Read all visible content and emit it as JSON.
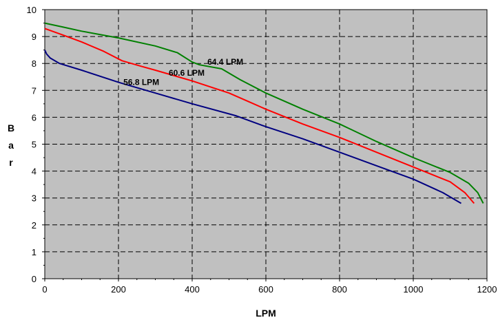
{
  "chart_data": {
    "type": "line",
    "title": "",
    "xlabel": "LPM",
    "ylabel": "Bar",
    "xlim": [
      0,
      1200
    ],
    "ylim": [
      0,
      10
    ],
    "xticks": [
      "0",
      "200",
      "400",
      "600",
      "800",
      "1000",
      "1200"
    ],
    "yticks": [
      "0",
      "1",
      "2",
      "3",
      "4",
      "5",
      "6",
      "7",
      "8",
      "9",
      "10"
    ],
    "grid": true,
    "background": "#c0c0c0",
    "series": [
      {
        "name": "56.8 LPM",
        "color": "#000080",
        "points": [
          [
            0,
            8.5
          ],
          [
            5,
            8.35
          ],
          [
            15,
            8.2
          ],
          [
            40,
            8.0
          ],
          [
            100,
            7.75
          ],
          [
            200,
            7.3
          ],
          [
            300,
            6.9
          ],
          [
            400,
            6.5
          ],
          [
            520,
            6.05
          ],
          [
            600,
            5.65
          ],
          [
            700,
            5.2
          ],
          [
            800,
            4.7
          ],
          [
            900,
            4.2
          ],
          [
            1000,
            3.7
          ],
          [
            1080,
            3.2
          ],
          [
            1130,
            2.8
          ]
        ]
      },
      {
        "name": "60.6 LPM",
        "color": "#ff0000",
        "points": [
          [
            0,
            9.3
          ],
          [
            50,
            9.05
          ],
          [
            100,
            8.8
          ],
          [
            160,
            8.45
          ],
          [
            210,
            8.1
          ],
          [
            260,
            7.9
          ],
          [
            300,
            7.75
          ],
          [
            400,
            7.35
          ],
          [
            500,
            6.9
          ],
          [
            550,
            6.6
          ],
          [
            600,
            6.3
          ],
          [
            700,
            5.75
          ],
          [
            800,
            5.25
          ],
          [
            900,
            4.7
          ],
          [
            1000,
            4.15
          ],
          [
            1100,
            3.6
          ],
          [
            1140,
            3.2
          ],
          [
            1165,
            2.8
          ]
        ]
      },
      {
        "name": "64.4 LPM",
        "color": "#008000",
        "points": [
          [
            0,
            9.5
          ],
          [
            50,
            9.35
          ],
          [
            100,
            9.2
          ],
          [
            200,
            8.95
          ],
          [
            300,
            8.65
          ],
          [
            360,
            8.4
          ],
          [
            400,
            8.05
          ],
          [
            420,
            7.95
          ],
          [
            480,
            7.8
          ],
          [
            530,
            7.4
          ],
          [
            600,
            6.9
          ],
          [
            700,
            6.3
          ],
          [
            800,
            5.75
          ],
          [
            900,
            5.1
          ],
          [
            1000,
            4.5
          ],
          [
            1100,
            3.95
          ],
          [
            1150,
            3.55
          ],
          [
            1175,
            3.2
          ],
          [
            1190,
            2.8
          ]
        ]
      }
    ],
    "annotations": [
      {
        "text": "56.8 LPM",
        "x": 262,
        "y": 7.2
      },
      {
        "text": "60.6 LPM",
        "x": 385,
        "y": 7.55
      },
      {
        "text": "64.4 LPM",
        "x": 490,
        "y": 7.95
      }
    ]
  }
}
